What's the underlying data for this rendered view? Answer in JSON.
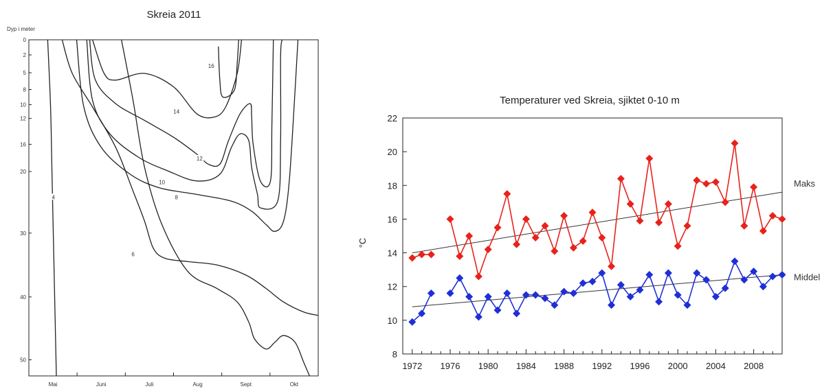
{
  "chart_data": [
    {
      "type": "contour",
      "title": "Skreia 2011",
      "ylabel": "Dyp i meter",
      "y_ticks": [
        0,
        2,
        5,
        8,
        10,
        12,
        16,
        20,
        30,
        40,
        50
      ],
      "x_tick_labels": [
        "Mai",
        "Juni",
        "Juli",
        "Aug",
        "Sept",
        "Okt"
      ],
      "contour_labels": [
        "16",
        "14",
        "12",
        "10",
        "8",
        "6",
        "4"
      ],
      "contours": [
        {
          "level": "16",
          "points": [
            [
              0.655,
              0.02
            ],
            [
              0.66,
              0.12
            ],
            [
              0.67,
              0.17
            ],
            [
              0.71,
              0.15
            ],
            [
              0.72,
              0.07
            ],
            [
              0.725,
              0.0
            ]
          ]
        },
        {
          "level": "14",
          "points": [
            [
              0.22,
              0.0
            ],
            [
              0.26,
              0.1
            ],
            [
              0.3,
              0.12
            ],
            [
              0.4,
              0.1
            ],
            [
              0.5,
              0.14
            ],
            [
              0.58,
              0.22
            ],
            [
              0.64,
              0.23
            ],
            [
              0.68,
              0.2
            ],
            [
              0.72,
              0.1
            ],
            [
              0.735,
              0.0
            ]
          ]
        },
        {
          "level": "12",
          "points": [
            [
              0.21,
              0.0
            ],
            [
              0.23,
              0.12
            ],
            [
              0.3,
              0.19
            ],
            [
              0.4,
              0.24
            ],
            [
              0.5,
              0.29
            ],
            [
              0.58,
              0.34
            ],
            [
              0.62,
              0.37
            ],
            [
              0.66,
              0.37
            ],
            [
              0.69,
              0.3
            ],
            [
              0.73,
              0.22
            ],
            [
              0.765,
              0.19
            ],
            [
              0.77,
              0.23
            ],
            [
              0.775,
              0.31
            ],
            [
              0.8,
              0.42
            ],
            [
              0.835,
              0.42
            ],
            [
              0.84,
              0.25
            ],
            [
              0.845,
              0.0
            ]
          ]
        },
        {
          "level": "10",
          "points": [
            [
              0.2,
              0.0
            ],
            [
              0.22,
              0.18
            ],
            [
              0.28,
              0.28
            ],
            [
              0.38,
              0.35
            ],
            [
              0.48,
              0.39
            ],
            [
              0.58,
              0.42
            ],
            [
              0.66,
              0.4
            ],
            [
              0.7,
              0.32
            ],
            [
              0.73,
              0.28
            ],
            [
              0.76,
              0.3
            ],
            [
              0.77,
              0.38
            ],
            [
              0.79,
              0.46
            ],
            [
              0.8,
              0.5
            ],
            [
              0.86,
              0.48
            ],
            [
              0.87,
              0.3
            ],
            [
              0.87,
              0.05
            ],
            [
              0.875,
              0.0
            ]
          ]
        },
        {
          "level": "8",
          "points": [
            [
              0.165,
              0.0
            ],
            [
              0.19,
              0.2
            ],
            [
              0.25,
              0.32
            ],
            [
              0.35,
              0.4
            ],
            [
              0.45,
              0.44
            ],
            [
              0.58,
              0.46
            ],
            [
              0.7,
              0.48
            ],
            [
              0.77,
              0.51
            ],
            [
              0.82,
              0.55
            ],
            [
              0.85,
              0.57
            ],
            [
              0.88,
              0.54
            ],
            [
              0.9,
              0.42
            ],
            [
              0.92,
              0.15
            ],
            [
              0.93,
              0.0
            ]
          ]
        },
        {
          "level": "6",
          "points": [
            [
              0.115,
              0.0
            ],
            [
              0.15,
              0.1
            ],
            [
              0.22,
              0.2
            ],
            [
              0.3,
              0.32
            ],
            [
              0.36,
              0.45
            ],
            [
              0.4,
              0.54
            ],
            [
              0.43,
              0.62
            ],
            [
              0.47,
              0.65
            ],
            [
              0.55,
              0.66
            ],
            [
              0.65,
              0.67
            ],
            [
              0.75,
              0.7
            ],
            [
              0.82,
              0.74
            ],
            [
              0.88,
              0.78
            ],
            [
              0.95,
              0.81
            ],
            [
              1.0,
              0.82
            ]
          ]
        },
        {
          "level": "4",
          "points": [
            [
              0.065,
              0.0
            ],
            [
              0.075,
              0.2
            ],
            [
              0.08,
              0.4
            ],
            [
              0.085,
              0.6
            ],
            [
              0.09,
              0.8
            ],
            [
              0.095,
              1.0
            ]
          ]
        },
        {
          "level": "bottom",
          "points": [
            [
              0.32,
              0.0
            ],
            [
              0.36,
              0.18
            ],
            [
              0.4,
              0.38
            ],
            [
              0.46,
              0.55
            ],
            [
              0.55,
              0.69
            ],
            [
              0.65,
              0.74
            ],
            [
              0.72,
              0.78
            ],
            [
              0.76,
              0.84
            ],
            [
              0.78,
              0.89
            ],
            [
              0.82,
              0.92
            ],
            [
              0.85,
              0.9
            ],
            [
              0.88,
              0.88
            ],
            [
              0.92,
              0.9
            ],
            [
              0.95,
              0.96
            ],
            [
              0.97,
              1.0
            ]
          ]
        }
      ]
    },
    {
      "type": "line",
      "title": "Temperaturer ved Skreia, sjiktet 0-10 m",
      "xlabel": "",
      "ylabel": "°C",
      "xlim": [
        1971,
        2011
      ],
      "ylim": [
        8,
        22
      ],
      "y_ticks": [
        8,
        10,
        12,
        14,
        16,
        18,
        20,
        22
      ],
      "x_ticks": [
        1972,
        1976,
        1980,
        1984,
        1988,
        1992,
        1996,
        2000,
        2004,
        2008
      ],
      "series": [
        {
          "name": "Maks",
          "color": "#e8221b",
          "points": [
            [
              1972,
              13.7
            ],
            [
              1973,
              13.9
            ],
            [
              1974,
              13.9
            ],
            [
              1976,
              16.0
            ],
            [
              1977,
              13.8
            ],
            [
              1978,
              15.0
            ],
            [
              1979,
              12.6
            ],
            [
              1980,
              14.2
            ],
            [
              1981,
              15.5
            ],
            [
              1982,
              17.5
            ],
            [
              1983,
              14.5
            ],
            [
              1984,
              16.0
            ],
            [
              1985,
              14.9
            ],
            [
              1986,
              15.6
            ],
            [
              1987,
              14.1
            ],
            [
              1988,
              16.2
            ],
            [
              1989,
              14.3
            ],
            [
              1990,
              14.7
            ],
            [
              1991,
              16.4
            ],
            [
              1992,
              14.9
            ],
            [
              1993,
              13.2
            ],
            [
              1994,
              18.4
            ],
            [
              1995,
              16.9
            ],
            [
              1996,
              15.9
            ],
            [
              1997,
              19.6
            ],
            [
              1998,
              15.8
            ],
            [
              1999,
              16.9
            ],
            [
              2000,
              14.4
            ],
            [
              2001,
              15.6
            ],
            [
              2002,
              18.3
            ],
            [
              2003,
              18.1
            ],
            [
              2004,
              18.2
            ],
            [
              2005,
              17.0
            ],
            [
              2006,
              20.5
            ],
            [
              2007,
              15.6
            ],
            [
              2008,
              17.9
            ],
            [
              2009,
              15.3
            ],
            [
              2010,
              16.2
            ],
            [
              2011,
              16.0
            ]
          ],
          "trend": [
            [
              1972,
              14.0
            ],
            [
              2011,
              17.6
            ]
          ]
        },
        {
          "name": "Middel",
          "color": "#1f2fd6",
          "points": [
            [
              1972,
              9.9
            ],
            [
              1973,
              10.4
            ],
            [
              1974,
              11.6
            ],
            [
              1976,
              11.6
            ],
            [
              1977,
              12.5
            ],
            [
              1978,
              11.4
            ],
            [
              1979,
              10.2
            ],
            [
              1980,
              11.4
            ],
            [
              1981,
              10.6
            ],
            [
              1982,
              11.6
            ],
            [
              1983,
              10.4
            ],
            [
              1984,
              11.5
            ],
            [
              1985,
              11.5
            ],
            [
              1986,
              11.3
            ],
            [
              1987,
              10.9
            ],
            [
              1988,
              11.7
            ],
            [
              1989,
              11.6
            ],
            [
              1990,
              12.2
            ],
            [
              1991,
              12.3
            ],
            [
              1992,
              12.8
            ],
            [
              1993,
              10.9
            ],
            [
              1994,
              12.1
            ],
            [
              1995,
              11.4
            ],
            [
              1996,
              11.8
            ],
            [
              1997,
              12.7
            ],
            [
              1998,
              11.1
            ],
            [
              1999,
              12.8
            ],
            [
              2000,
              11.5
            ],
            [
              2001,
              10.9
            ],
            [
              2002,
              12.8
            ],
            [
              2003,
              12.4
            ],
            [
              2004,
              11.4
            ],
            [
              2005,
              11.9
            ],
            [
              2006,
              13.5
            ],
            [
              2007,
              12.4
            ],
            [
              2008,
              12.9
            ],
            [
              2009,
              12.0
            ],
            [
              2010,
              12.6
            ],
            [
              2011,
              12.7
            ]
          ],
          "trend": [
            [
              1972,
              10.8
            ],
            [
              2011,
              12.7
            ]
          ]
        }
      ]
    }
  ]
}
